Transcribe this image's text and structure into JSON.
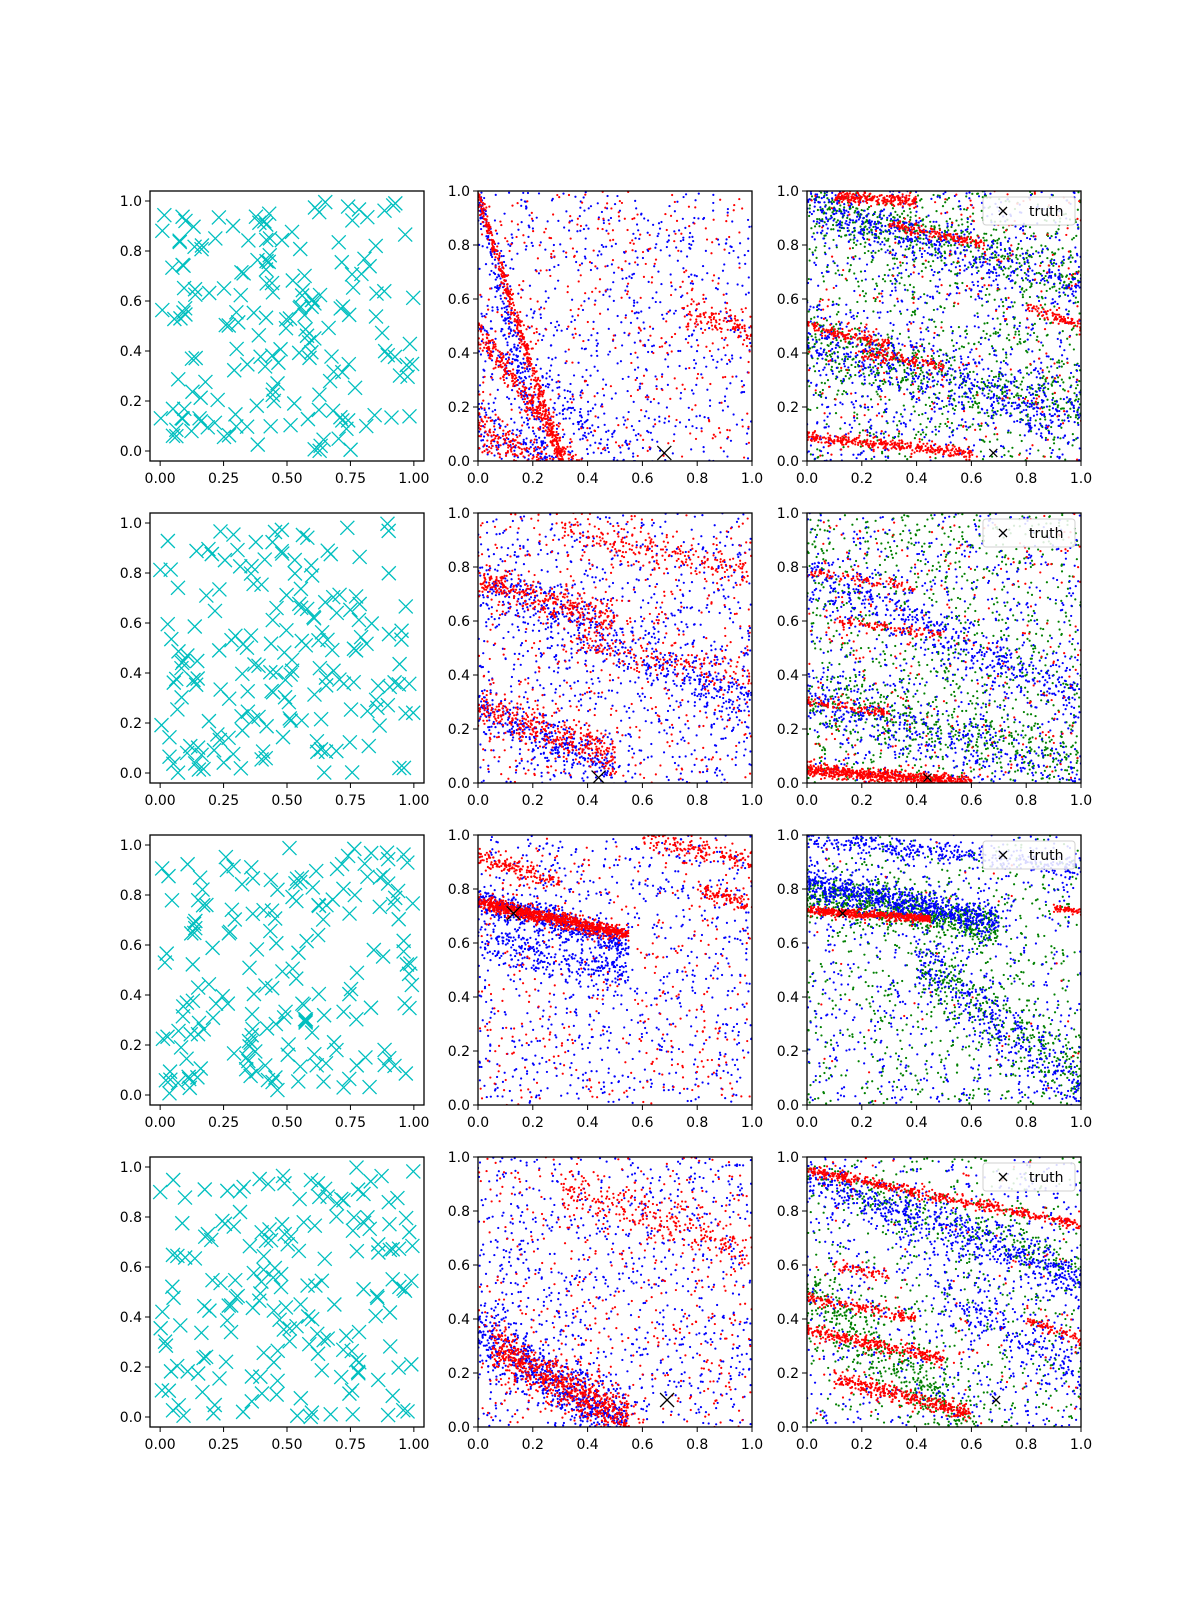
{
  "figure": {
    "rows": 4,
    "cols": 3
  },
  "chart_data": [
    {
      "type": "scatter",
      "row": 0,
      "col": 0,
      "marker": "x",
      "color": "#00bfbf",
      "xlim": [
        -0.04,
        1.04
      ],
      "ylim": [
        -0.04,
        1.04
      ],
      "xticks": [
        "0.00",
        "0.25",
        "0.50",
        "0.75",
        "1.00"
      ],
      "xtick_values": [
        0,
        0.25,
        0.5,
        0.75,
        1
      ],
      "yticks": [
        "0.0",
        "0.2",
        "0.4",
        "0.6",
        "0.8",
        "1.0"
      ],
      "ytick_values": [
        0,
        0.2,
        0.4,
        0.6,
        0.8,
        1
      ],
      "points": {
        "count": 180,
        "distribution": "uniform",
        "seed": 11
      }
    },
    {
      "type": "scatter",
      "row": 0,
      "col": 1,
      "marker": "dot",
      "xlim": [
        0,
        1
      ],
      "ylim": [
        0,
        1
      ],
      "xticks": [
        "0.0",
        "0.2",
        "0.4",
        "0.6",
        "0.8",
        "1.0"
      ],
      "xtick_values": [
        0,
        0.2,
        0.4,
        0.6,
        0.8,
        1
      ],
      "yticks": [
        "0.0",
        "0.2",
        "0.4",
        "0.6",
        "0.8",
        "1.0"
      ],
      "ytick_values": [
        0,
        0.2,
        0.4,
        0.6,
        0.8,
        1
      ],
      "truth": [
        0.68,
        0.03
      ],
      "series": [
        {
          "color": "#0000ff",
          "uniform": 700,
          "bands": [
            [
              0.0,
              0.98,
              0.3,
              -0.25,
              0.06,
              300
            ],
            [
              0.0,
              0.15,
              0.6,
              -0.25,
              0.06,
              300
            ],
            [
              0.0,
              0.48,
              0.9,
              -0.3,
              0.05,
              260
            ]
          ],
          "seed": 21
        },
        {
          "color": "#ff0000",
          "uniform": 400,
          "bands": [
            [
              0.0,
              0.98,
              0.35,
              -0.15,
              0.025,
              500
            ],
            [
              0.0,
              0.48,
              0.45,
              -0.15,
              0.03,
              350
            ],
            [
              0.0,
              0.12,
              0.55,
              -0.2,
              0.04,
              400
            ],
            [
              0.75,
              0.55,
              1.0,
              0.48,
              0.03,
              120
            ]
          ],
          "seed": 22
        }
      ]
    },
    {
      "type": "scatter",
      "row": 0,
      "col": 2,
      "marker": "dot",
      "xlim": [
        0,
        1
      ],
      "ylim": [
        0,
        1
      ],
      "xticks": [
        "0.0",
        "0.2",
        "0.4",
        "0.6",
        "0.8",
        "1.0"
      ],
      "xtick_values": [
        0,
        0.2,
        0.4,
        0.6,
        0.8,
        1
      ],
      "yticks": [
        "0.0",
        "0.2",
        "0.4",
        "0.6",
        "0.8",
        "1.0"
      ],
      "ytick_values": [
        0,
        0.2,
        0.4,
        0.6,
        0.8,
        1
      ],
      "truth": [
        0.68,
        0.03
      ],
      "legend": {
        "label": "truth",
        "loc": "upper right"
      },
      "series": [
        {
          "color": "#008000",
          "uniform": 900,
          "bands": [
            [
              0.0,
              0.95,
              1.0,
              0.68,
              0.05,
              400
            ],
            [
              0.0,
              0.42,
              1.0,
              0.2,
              0.05,
              350
            ]
          ],
          "seed": 31
        },
        {
          "color": "#0000ff",
          "uniform": 900,
          "bands": [
            [
              0.0,
              0.95,
              1.0,
              0.65,
              0.04,
              400
            ],
            [
              0.0,
              0.45,
              1.0,
              0.15,
              0.05,
              400
            ]
          ],
          "seed": 32
        },
        {
          "color": "#ff0000",
          "uniform": 300,
          "bands": [
            [
              0.1,
              0.98,
              0.4,
              0.96,
              0.012,
              220
            ],
            [
              0.3,
              0.88,
              0.65,
              0.8,
              0.01,
              160
            ],
            [
              0.0,
              0.09,
              0.6,
              0.03,
              0.01,
              320
            ],
            [
              0.0,
              0.5,
              0.3,
              0.43,
              0.012,
              140
            ],
            [
              0.2,
              0.4,
              0.5,
              0.35,
              0.01,
              120
            ],
            [
              0.8,
              0.57,
              1.0,
              0.5,
              0.012,
              90
            ]
          ],
          "seed": 33
        }
      ]
    },
    {
      "type": "scatter",
      "row": 1,
      "col": 0,
      "marker": "x",
      "color": "#00bfbf",
      "xlim": [
        -0.04,
        1.04
      ],
      "ylim": [
        -0.04,
        1.04
      ],
      "xticks": [
        "0.00",
        "0.25",
        "0.50",
        "0.75",
        "1.00"
      ],
      "xtick_values": [
        0,
        0.25,
        0.5,
        0.75,
        1
      ],
      "yticks": [
        "0.0",
        "0.2",
        "0.4",
        "0.6",
        "0.8",
        "1.0"
      ],
      "ytick_values": [
        0,
        0.2,
        0.4,
        0.6,
        0.8,
        1
      ],
      "points": {
        "count": 180,
        "distribution": "uniform",
        "seed": 12
      }
    },
    {
      "type": "scatter",
      "row": 1,
      "col": 1,
      "marker": "dot",
      "xlim": [
        0,
        1
      ],
      "ylim": [
        0,
        1
      ],
      "xticks": [
        "0.0",
        "0.2",
        "0.4",
        "0.6",
        "0.8",
        "1.0"
      ],
      "xtick_values": [
        0,
        0.2,
        0.4,
        0.6,
        0.8,
        1
      ],
      "yticks": [
        "0.0",
        "0.2",
        "0.4",
        "0.6",
        "0.8",
        "1.0"
      ],
      "ytick_values": [
        0,
        0.2,
        0.4,
        0.6,
        0.8,
        1
      ],
      "truth": [
        0.44,
        0.02
      ],
      "series": [
        {
          "color": "#0000ff",
          "uniform": 900,
          "bands": [
            [
              0.0,
              0.75,
              1.0,
              0.3,
              0.05,
              450
            ],
            [
              0.0,
              0.28,
              0.5,
              0.05,
              0.05,
              300
            ]
          ],
          "seed": 41
        },
        {
          "color": "#ff0000",
          "uniform": 500,
          "bands": [
            [
              0.0,
              0.75,
              0.5,
              0.6,
              0.03,
              300
            ],
            [
              0.0,
              0.28,
              0.5,
              0.1,
              0.04,
              350
            ],
            [
              0.3,
              0.95,
              1.0,
              0.78,
              0.03,
              200
            ],
            [
              0.3,
              0.55,
              1.0,
              0.38,
              0.03,
              150
            ]
          ],
          "seed": 42
        }
      ]
    },
    {
      "type": "scatter",
      "row": 1,
      "col": 2,
      "marker": "dot",
      "xlim": [
        0,
        1
      ],
      "ylim": [
        0,
        1
      ],
      "xticks": [
        "0.0",
        "0.2",
        "0.4",
        "0.6",
        "0.8",
        "1.0"
      ],
      "xtick_values": [
        0,
        0.2,
        0.4,
        0.6,
        0.8,
        1
      ],
      "yticks": [
        "0.0",
        "0.2",
        "0.4",
        "0.6",
        "0.8",
        "1.0"
      ],
      "ytick_values": [
        0,
        0.2,
        0.4,
        0.6,
        0.8,
        1
      ],
      "truth": [
        0.44,
        0.02
      ],
      "legend": {
        "label": "truth",
        "loc": "upper right"
      },
      "series": [
        {
          "color": "#008000",
          "uniform": 1000,
          "bands": [
            [
              0.0,
              0.3,
              1.0,
              0.1,
              0.05,
              300
            ]
          ],
          "seed": 51
        },
        {
          "color": "#0000ff",
          "uniform": 700,
          "bands": [
            [
              0.0,
              0.78,
              1.0,
              0.32,
              0.05,
              450
            ],
            [
              0.0,
              0.32,
              1.0,
              0.0,
              0.05,
              300
            ]
          ],
          "seed": 52
        },
        {
          "color": "#ff0000",
          "uniform": 300,
          "bands": [
            [
              0.0,
              0.05,
              0.6,
              0.0,
              0.012,
              700
            ],
            [
              0.1,
              0.6,
              0.5,
              0.55,
              0.01,
              100
            ],
            [
              0.0,
              0.3,
              0.3,
              0.26,
              0.01,
              100
            ],
            [
              0.0,
              0.78,
              0.4,
              0.72,
              0.01,
              90
            ]
          ],
          "seed": 53
        }
      ]
    },
    {
      "type": "scatter",
      "row": 2,
      "col": 0,
      "marker": "x",
      "color": "#00bfbf",
      "xlim": [
        -0.04,
        1.04
      ],
      "ylim": [
        -0.04,
        1.04
      ],
      "xticks": [
        "0.00",
        "0.25",
        "0.50",
        "0.75",
        "1.00"
      ],
      "xtick_values": [
        0,
        0.25,
        0.5,
        0.75,
        1
      ],
      "yticks": [
        "0.0",
        "0.2",
        "0.4",
        "0.6",
        "0.8",
        "1.0"
      ],
      "ytick_values": [
        0,
        0.2,
        0.4,
        0.6,
        0.8,
        1
      ],
      "points": {
        "count": 180,
        "distribution": "uniform",
        "seed": 13
      }
    },
    {
      "type": "scatter",
      "row": 2,
      "col": 1,
      "marker": "dot",
      "xlim": [
        0,
        1
      ],
      "ylim": [
        0,
        1
      ],
      "xticks": [
        "0.0",
        "0.2",
        "0.4",
        "0.6",
        "0.8",
        "1.0"
      ],
      "xtick_values": [
        0,
        0.2,
        0.4,
        0.6,
        0.8,
        1
      ],
      "yticks": [
        "0.0",
        "0.2",
        "0.4",
        "0.6",
        "0.8",
        "1.0"
      ],
      "ytick_values": [
        0,
        0.2,
        0.4,
        0.6,
        0.8,
        1
      ],
      "truth": [
        0.13,
        0.71
      ],
      "series": [
        {
          "color": "#0000ff",
          "uniform": 800,
          "bands": [
            [
              0.0,
              0.76,
              0.55,
              0.6,
              0.03,
              500
            ],
            [
              0.0,
              0.62,
              0.55,
              0.48,
              0.04,
              300
            ]
          ],
          "seed": 61
        },
        {
          "color": "#ff0000",
          "uniform": 400,
          "bands": [
            [
              0.0,
              0.75,
              0.55,
              0.63,
              0.012,
              900
            ],
            [
              0.0,
              0.92,
              0.3,
              0.82,
              0.02,
              150
            ],
            [
              0.6,
              0.98,
              1.0,
              0.9,
              0.02,
              150
            ],
            [
              0.8,
              0.8,
              1.0,
              0.74,
              0.015,
              100
            ]
          ],
          "seed": 62
        }
      ]
    },
    {
      "type": "scatter",
      "row": 2,
      "col": 2,
      "marker": "dot",
      "xlim": [
        0,
        1
      ],
      "ylim": [
        0,
        1
      ],
      "xticks": [
        "0.0",
        "0.2",
        "0.4",
        "0.6",
        "0.8",
        "1.0"
      ],
      "xtick_values": [
        0,
        0.2,
        0.4,
        0.6,
        0.8,
        1
      ],
      "yticks": [
        "0.0",
        "0.2",
        "0.4",
        "0.6",
        "0.8",
        "1.0"
      ],
      "ytick_values": [
        0,
        0.2,
        0.4,
        0.6,
        0.8,
        1
      ],
      "truth": [
        0.13,
        0.71
      ],
      "legend": {
        "label": "truth",
        "loc": "upper right"
      },
      "series": [
        {
          "color": "#008000",
          "uniform": 700,
          "bands": [
            [
              0.0,
              0.78,
              0.7,
              0.66,
              0.04,
              700
            ],
            [
              0.4,
              0.55,
              1.0,
              0.1,
              0.06,
              300
            ]
          ],
          "seed": 71
        },
        {
          "color": "#0000ff",
          "uniform": 700,
          "bands": [
            [
              0.0,
              0.82,
              0.7,
              0.68,
              0.03,
              700
            ],
            [
              0.0,
              0.99,
              1.0,
              0.88,
              0.02,
              350
            ],
            [
              0.4,
              0.55,
              1.0,
              0.05,
              0.06,
              300
            ]
          ],
          "seed": 72
        },
        {
          "color": "#ff0000",
          "uniform": 40,
          "bands": [
            [
              0.0,
              0.72,
              0.45,
              0.69,
              0.008,
              500
            ],
            [
              0.9,
              0.73,
              1.0,
              0.72,
              0.006,
              60
            ]
          ],
          "seed": 73
        }
      ]
    },
    {
      "type": "scatter",
      "row": 3,
      "col": 0,
      "marker": "x",
      "color": "#00bfbf",
      "xlim": [
        -0.04,
        1.04
      ],
      "ylim": [
        -0.04,
        1.04
      ],
      "xticks": [
        "0.00",
        "0.25",
        "0.50",
        "0.75",
        "1.00"
      ],
      "xtick_values": [
        0,
        0.25,
        0.5,
        0.75,
        1
      ],
      "yticks": [
        "0.0",
        "0.2",
        "0.4",
        "0.6",
        "0.8",
        "1.0"
      ],
      "ytick_values": [
        0,
        0.2,
        0.4,
        0.6,
        0.8,
        1
      ],
      "points": {
        "count": 180,
        "distribution": "uniform",
        "seed": 14
      }
    },
    {
      "type": "scatter",
      "row": 3,
      "col": 1,
      "marker": "dot",
      "xlim": [
        0,
        1
      ],
      "ylim": [
        0,
        1
      ],
      "xticks": [
        "0.0",
        "0.2",
        "0.4",
        "0.6",
        "0.8",
        "1.0"
      ],
      "xtick_values": [
        0,
        0.2,
        0.4,
        0.6,
        0.8,
        1
      ],
      "yticks": [
        "0.0",
        "0.2",
        "0.4",
        "0.6",
        "0.8",
        "1.0"
      ],
      "ytick_values": [
        0,
        0.2,
        0.4,
        0.6,
        0.8,
        1
      ],
      "truth": [
        0.69,
        0.1
      ],
      "series": [
        {
          "color": "#0000ff",
          "uniform": 900,
          "bands": [
            [
              0.0,
              0.35,
              0.55,
              0.0,
              0.06,
              700
            ]
          ],
          "seed": 81
        },
        {
          "color": "#ff0000",
          "uniform": 500,
          "bands": [
            [
              0.05,
              0.3,
              0.55,
              0.02,
              0.04,
              700
            ],
            [
              0.3,
              0.88,
              1.0,
              0.65,
              0.04,
              250
            ]
          ],
          "seed": 82
        }
      ]
    },
    {
      "type": "scatter",
      "row": 3,
      "col": 2,
      "marker": "dot",
      "xlim": [
        0,
        1
      ],
      "ylim": [
        0,
        1
      ],
      "xticks": [
        "0.0",
        "0.2",
        "0.4",
        "0.6",
        "0.8",
        "1.0"
      ],
      "xtick_values": [
        0,
        0.2,
        0.4,
        0.6,
        0.8,
        1
      ],
      "yticks": [
        "0.0",
        "0.2",
        "0.4",
        "0.6",
        "0.8",
        "1.0"
      ],
      "ytick_values": [
        0,
        0.2,
        0.4,
        0.6,
        0.8,
        1
      ],
      "truth": [
        0.69,
        0.1
      ],
      "legend": {
        "label": "truth",
        "loc": "upper right"
      },
      "series": [
        {
          "color": "#008000",
          "uniform": 600,
          "bands": [
            [
              0.0,
              0.5,
              0.6,
              0.0,
              0.06,
              400
            ],
            [
              0.0,
              0.93,
              1.0,
              0.6,
              0.04,
              250
            ]
          ],
          "seed": 91
        },
        {
          "color": "#0000ff",
          "uniform": 700,
          "bands": [
            [
              0.0,
              0.93,
              1.0,
              0.55,
              0.04,
              600
            ],
            [
              0.5,
              0.5,
              1.0,
              0.2,
              0.05,
              200
            ]
          ],
          "seed": 92
        },
        {
          "color": "#ff0000",
          "uniform": 120,
          "bands": [
            [
              0.0,
              0.95,
              1.0,
              0.75,
              0.01,
              500
            ],
            [
              0.0,
              0.36,
              0.5,
              0.25,
              0.012,
              300
            ],
            [
              0.0,
              0.48,
              0.4,
              0.4,
              0.01,
              150
            ],
            [
              0.1,
              0.18,
              0.6,
              0.05,
              0.015,
              350
            ],
            [
              0.8,
              0.4,
              1.0,
              0.32,
              0.01,
              80
            ],
            [
              0.1,
              0.6,
              0.3,
              0.56,
              0.01,
              60
            ]
          ],
          "seed": 93
        }
      ]
    }
  ]
}
